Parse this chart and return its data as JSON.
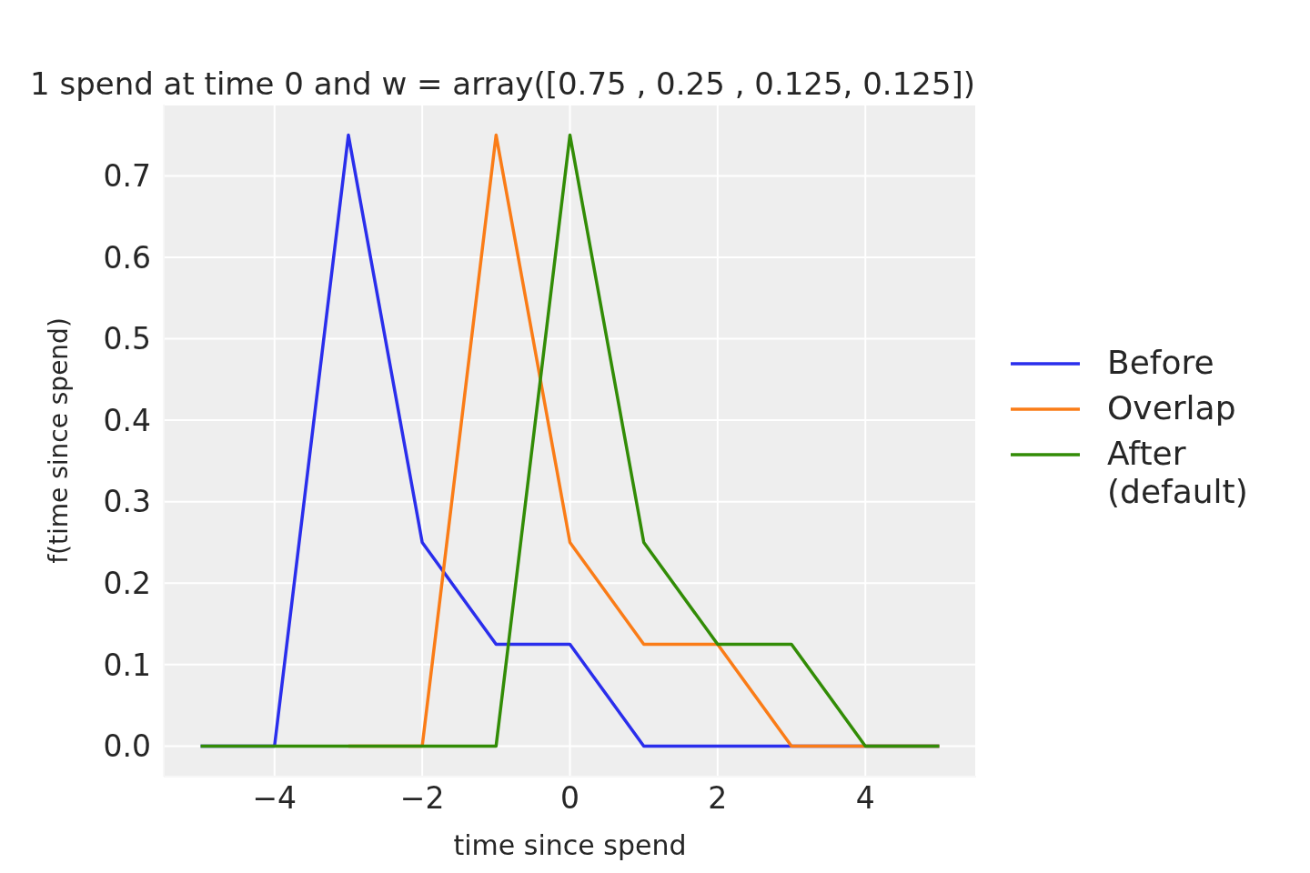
{
  "chart_data": {
    "type": "line",
    "title": "1 spend at time 0 and w = array([0.75 , 0.25 , 0.125, 0.125])",
    "xlabel": "time since spend",
    "ylabel": "f(time since spend)",
    "x": [
      -5,
      -4,
      -3,
      -2,
      -1,
      0,
      1,
      2,
      3,
      4,
      5
    ],
    "series": [
      {
        "name": "Before",
        "color": "#2a2eec",
        "values": [
          0,
          0,
          0.75,
          0.25,
          0.125,
          0.125,
          0,
          0,
          0,
          0,
          0
        ]
      },
      {
        "name": "Overlap",
        "color": "#fa7c17",
        "values": [
          null,
          null,
          0,
          0,
          0.75,
          0.25,
          0.125,
          0.125,
          0,
          0,
          0
        ]
      },
      {
        "name": "After\n(default)",
        "color": "#328c06",
        "values": [
          0,
          0,
          0,
          0,
          0,
          0.75,
          0.25,
          0.125,
          0.125,
          0,
          0
        ]
      }
    ],
    "xlim": [
      -5.5,
      5.5
    ],
    "xticks": [
      -4,
      -2,
      0,
      2,
      4
    ],
    "ylim": [
      -0.0375,
      0.7875
    ],
    "yticks": [
      {
        "value": 0,
        "label": "0.0"
      },
      0.1,
      0.2,
      0.3,
      0.4,
      0.5,
      0.6,
      0.7
    ],
    "grid": true,
    "legend": "right",
    "marker": "none",
    "line_style": "solid"
  }
}
